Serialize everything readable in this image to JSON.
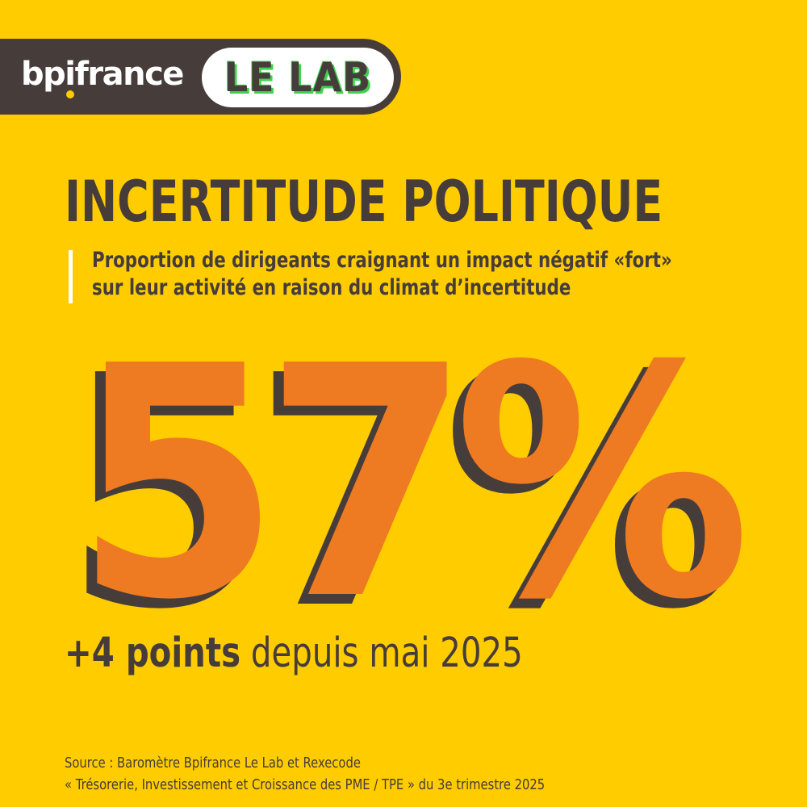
{
  "brand": {
    "logo_text": "bpifrance",
    "badge_text": "LE LAB"
  },
  "headline": {
    "title": "INCERTITUDE POLITIQUE",
    "subtitle_line1": "Proportion de dirigeants craignant un impact négatif «fort»",
    "subtitle_line2": "sur leur activité en raison du climat d’incertitude"
  },
  "stat": {
    "value": "57%",
    "change_bold": "+4 points",
    "change_rest": " depuis mai 2025"
  },
  "source": {
    "line1": "Source : Baromètre Bpifrance Le Lab et Rexecode",
    "line2": "« Trésorerie, Investissement et Croissance des PME / TPE » du 3e trimestre 2025"
  },
  "colors": {
    "background": "#FFCC00",
    "text_dark": "#463C3A",
    "accent_orange": "#EE7A22",
    "badge_green": "#3FD14F"
  }
}
